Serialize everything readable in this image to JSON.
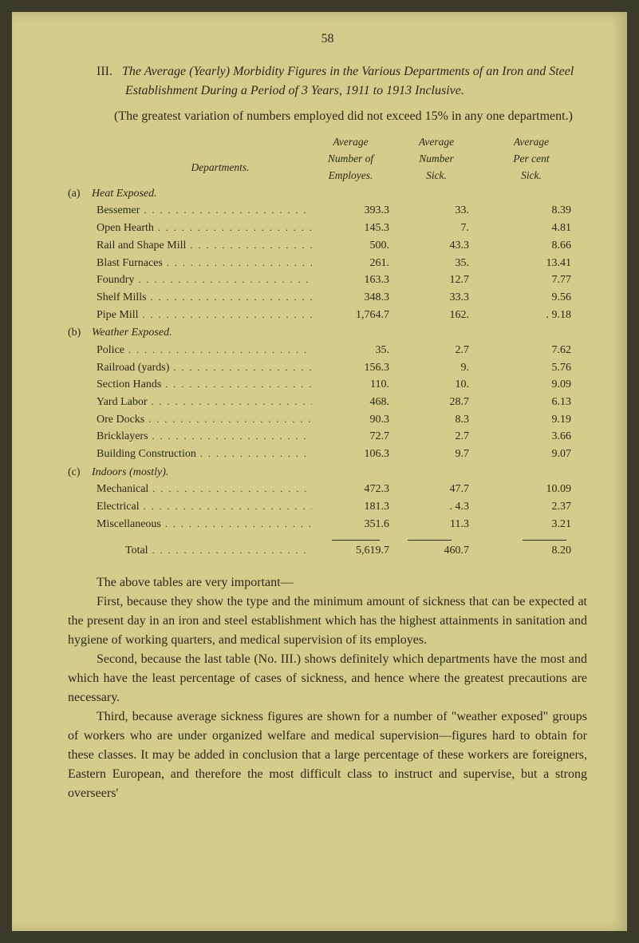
{
  "pageNumber": "58",
  "sectionTitle": {
    "roman": "III.",
    "text": "The Average (Yearly) Morbidity Figures in the Various Departments of an Iron and Steel Establishment During a Period of 3 Years, 1911 to 1913 Inclusive."
  },
  "introText": "(The greatest variation of numbers employed did not exceed 15% in any one department.)",
  "table": {
    "headers": {
      "departments": "Departments.",
      "avgNumEmployes": "Average Number of Employes.",
      "avgNumSick": "Average Number Sick.",
      "avgPercentSick": "Average Per cent Sick."
    },
    "categories": [
      {
        "marker": "(a)",
        "name": "Heat Exposed.",
        "rows": [
          {
            "name": "Bessemer",
            "employes": "393.3",
            "sick": "33.",
            "percent": "8.39"
          },
          {
            "name": "Open Hearth",
            "employes": "145.3",
            "sick": "7.",
            "percent": "4.81"
          },
          {
            "name": "Rail and Shape Mill",
            "employes": "500.",
            "sick": "43.3",
            "percent": "8.66"
          },
          {
            "name": "Blast Furnaces",
            "employes": "261.",
            "sick": "35.",
            "percent": "13.41"
          },
          {
            "name": "Foundry",
            "employes": "163.3",
            "sick": "12.7",
            "percent": "7.77"
          },
          {
            "name": "Shelf Mills",
            "employes": "348.3",
            "sick": "33.3",
            "percent": "9.56"
          },
          {
            "name": "Pipe Mill",
            "employes": "1,764.7",
            "sick": "162.",
            "percent": ". 9.18"
          }
        ]
      },
      {
        "marker": "(b)",
        "name": "Weather Exposed.",
        "rows": [
          {
            "name": "Police",
            "employes": "35.",
            "sick": "2.7",
            "percent": "7.62"
          },
          {
            "name": "Railroad (yards)",
            "employes": "156.3",
            "sick": "9.",
            "percent": "5.76"
          },
          {
            "name": "Section Hands",
            "employes": "110.",
            "sick": "10.",
            "percent": "9.09"
          },
          {
            "name": "Yard Labor",
            "employes": "468.",
            "sick": "28.7",
            "percent": "6.13"
          },
          {
            "name": "Ore Docks",
            "employes": "90.3",
            "sick": "8.3",
            "percent": "9.19"
          },
          {
            "name": "Bricklayers",
            "employes": "72.7",
            "sick": "2.7",
            "percent": "3.66"
          },
          {
            "name": "Building Construction",
            "employes": "106.3",
            "sick": "9.7",
            "percent": "9.07"
          }
        ]
      },
      {
        "marker": "(c)",
        "name": "Indoors (mostly).",
        "rows": [
          {
            "name": "Mechanical",
            "employes": "472.3",
            "sick": "47.7",
            "percent": "10.09"
          },
          {
            "name": "Electrical",
            "employes": "181.3",
            "sick": ". 4.3",
            "percent": "2.37"
          },
          {
            "name": "Miscellaneous",
            "employes": "351.6",
            "sick": "11.3",
            "percent": "3.21"
          }
        ]
      }
    ],
    "total": {
      "name": "Total",
      "employes": "5,619.7",
      "sick": "460.7",
      "percent": "8.20"
    }
  },
  "bodyParagraphs": [
    "The above tables are very important—",
    "First, because they show the type and the minimum amount of sickness that can be expected at the present day in an iron and steel establishment which has the highest attainments in sanitation and hygiene of working quarters, and medical supervision of its employes.",
    "Second, because the last table (No. III.) shows definitely which departments have the most and which have the least percentage of cases of sickness, and hence where the greatest precautions are necessary.",
    "Third, because average sickness figures are shown for a number of \"weather exposed\" groups of workers who are under organized welfare and medical supervision—figures hard to obtain for these classes. It may be added in conclusion that a large percentage of these workers are foreigners, Eastern European, and therefore the most difficult class to instruct and supervise, but a strong overseers'"
  ],
  "colors": {
    "pageBackground": "#d4cc8a",
    "text": "#2a2a1a",
    "outerBackground": "#3a3a2a"
  }
}
